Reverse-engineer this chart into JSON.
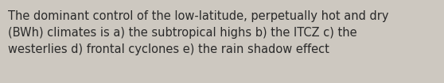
{
  "text": "The dominant control of the low-latitude, perpetually hot and dry\n(BWh) climates is a) the subtropical highs b) the ITCZ c) the\nwesterlies d) frontal cyclones e) the rain shadow effect",
  "background_color": "#cdc8c0",
  "text_color": "#2a2a2a",
  "font_size": 10.5,
  "fig_width": 5.58,
  "fig_height": 1.05,
  "dpi": 100
}
